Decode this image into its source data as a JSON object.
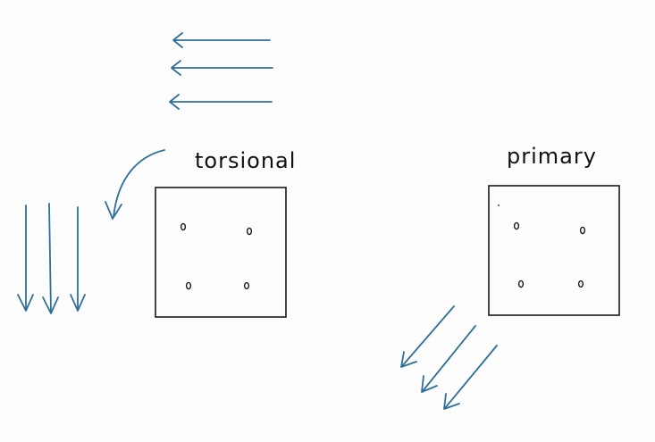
{
  "labels": {
    "left": "torsional",
    "right": "primary"
  },
  "colors": {
    "arrow": "#2f6f9a",
    "ink": "#1a1a1a",
    "background": "#fdfdfd"
  },
  "diagram": {
    "left_panel": {
      "bolt_count": 4,
      "load_arrow_direction": "left and down",
      "rotation_arrow": "curved"
    },
    "right_panel": {
      "bolt_count": 4,
      "load_arrow_direction": "down-left"
    }
  }
}
